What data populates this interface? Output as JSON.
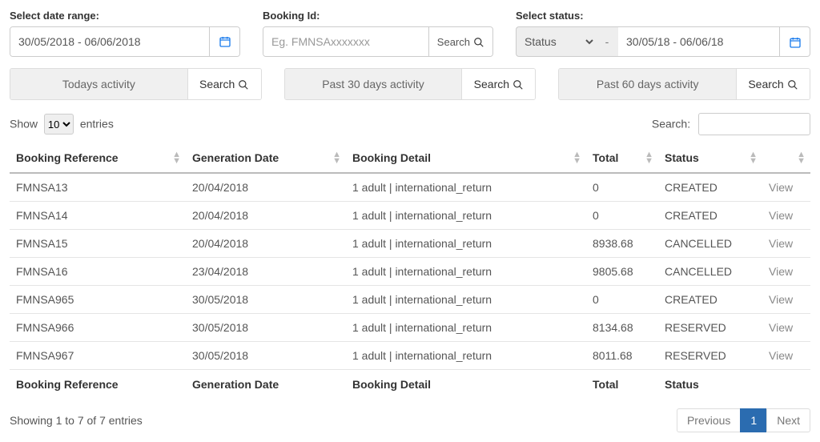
{
  "filters": {
    "dateRange": {
      "label": "Select date range:",
      "value": "30/05/2018 - 06/06/2018"
    },
    "bookingId": {
      "label": "Booking Id:",
      "placeholder": "Eg. FMNSAxxxxxxx",
      "searchLabel": "Search"
    },
    "status": {
      "label": "Select status:",
      "placeholder": "Status",
      "dash": "-",
      "dateValue": "30/05/18 - 06/06/18"
    }
  },
  "quick": {
    "today": "Todays activity",
    "d30": "Past 30 days activity",
    "d60": "Past 60 days activity",
    "search": "Search"
  },
  "tableControls": {
    "showPrefix": "Show",
    "showSuffix": "entries",
    "pageSize": "10",
    "searchLabel": "Search:"
  },
  "columns": {
    "ref": "Booking Reference",
    "gen": "Generation Date",
    "detail": "Booking Detail",
    "total": "Total",
    "status": "Status"
  },
  "rows": [
    {
      "ref": "FMNSA13",
      "gen": "20/04/2018",
      "detail": "1 adult | international_return",
      "total": "0",
      "status": "CREATED",
      "action": "View"
    },
    {
      "ref": "FMNSA14",
      "gen": "20/04/2018",
      "detail": "1 adult | international_return",
      "total": "0",
      "status": "CREATED",
      "action": "View"
    },
    {
      "ref": "FMNSA15",
      "gen": "20/04/2018",
      "detail": "1 adult | international_return",
      "total": "8938.68",
      "status": "CANCELLED",
      "action": "View"
    },
    {
      "ref": "FMNSA16",
      "gen": "23/04/2018",
      "detail": "1 adult | international_return",
      "total": "9805.68",
      "status": "CANCELLED",
      "action": "View"
    },
    {
      "ref": "FMNSA965",
      "gen": "30/05/2018",
      "detail": "1 adult | international_return",
      "total": "0",
      "status": "CREATED",
      "action": "View"
    },
    {
      "ref": "FMNSA966",
      "gen": "30/05/2018",
      "detail": "1 adult | international_return",
      "total": "8134.68",
      "status": "RESERVED",
      "action": "View"
    },
    {
      "ref": "FMNSA967",
      "gen": "30/05/2018",
      "detail": "1 adult | international_return",
      "total": "8011.68",
      "status": "RESERVED",
      "action": "View"
    }
  ],
  "info": "Showing 1 to 7 of 7 entries",
  "pager": {
    "prev": "Previous",
    "page": "1",
    "next": "Next"
  },
  "colors": {
    "accent": "#1b7ced",
    "pagerActive": "#2b6cb0"
  }
}
